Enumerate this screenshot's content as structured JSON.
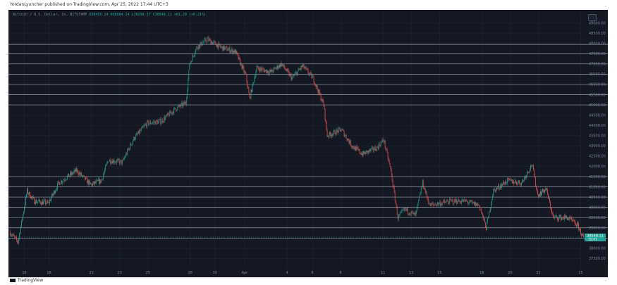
{
  "header": {
    "published_by": "YordanLyuncher published on TradingView.com, Apr 25, 2022 17:44 UTC+3"
  },
  "symbol_bar": {
    "name": "Bitcoin / U.S. Dollar, 1h, BITSTAMP",
    "open": "O38455.24",
    "high": "H38584.14",
    "low": "L38298.57",
    "close": "C38548.11",
    "change": "+81.29 (+0.21%)"
  },
  "footer": {
    "brand": "TradingView"
  },
  "price_tags": {
    "last_price": "38548.11",
    "countdown": "15:01"
  },
  "colors": {
    "background": "#141823",
    "up": "#26a69a",
    "down": "#ef5350",
    "grid": "#232736",
    "levels": "#9aa0ad",
    "axis_text": "#7d8597"
  },
  "chart_data": {
    "type": "candlestick",
    "title": "Bitcoin / U.S. Dollar, 1h, BITSTAMP",
    "ylim": [
      37000,
      49500
    ],
    "y_ticks": [
      37500,
      38000,
      38500,
      39000,
      39500,
      40000,
      40500,
      41000,
      41500,
      42000,
      42500,
      43000,
      43500,
      44000,
      44500,
      45000,
      45500,
      46000,
      46500,
      47000,
      47500,
      48000,
      48500,
      49000
    ],
    "x_ticks": [
      "16",
      "18",
      "21",
      "23",
      "25",
      "28",
      "30",
      "Apr",
      "4",
      "6",
      "8",
      "11",
      "13",
      "15",
      "18",
      "20",
      "22",
      "25"
    ],
    "x_tick_index": [
      20,
      55,
      115,
      155,
      195,
      255,
      290,
      332,
      392,
      428,
      468,
      528,
      568,
      608,
      668,
      708,
      748,
      808
    ],
    "horizontal_levels": [
      47950,
      47500,
      47000,
      46500,
      46000,
      45500,
      45000,
      41500,
      41000,
      40500,
      40000,
      39500,
      39000,
      38500
    ],
    "path_keypoints": [
      [
        0,
        38800
      ],
      [
        12,
        38300
      ],
      [
        25,
        40800
      ],
      [
        35,
        40300
      ],
      [
        55,
        40200
      ],
      [
        70,
        41200
      ],
      [
        95,
        41800
      ],
      [
        115,
        41100
      ],
      [
        130,
        41300
      ],
      [
        140,
        42300
      ],
      [
        160,
        42200
      ],
      [
        175,
        43300
      ],
      [
        195,
        44100
      ],
      [
        215,
        44200
      ],
      [
        235,
        44800
      ],
      [
        250,
        45100
      ],
      [
        255,
        47000
      ],
      [
        265,
        47800
      ],
      [
        280,
        48200
      ],
      [
        300,
        47800
      ],
      [
        320,
        47600
      ],
      [
        335,
        46400
      ],
      [
        340,
        45300
      ],
      [
        350,
        46800
      ],
      [
        370,
        46600
      ],
      [
        385,
        47000
      ],
      [
        400,
        46300
      ],
      [
        415,
        46900
      ],
      [
        430,
        46300
      ],
      [
        445,
        45000
      ],
      [
        450,
        43500
      ],
      [
        470,
        43800
      ],
      [
        485,
        43000
      ],
      [
        500,
        42600
      ],
      [
        520,
        42900
      ],
      [
        530,
        43300
      ],
      [
        540,
        41800
      ],
      [
        550,
        39500
      ],
      [
        560,
        39900
      ],
      [
        575,
        39600
      ],
      [
        585,
        41200
      ],
      [
        595,
        40100
      ],
      [
        610,
        40200
      ],
      [
        625,
        40300
      ],
      [
        645,
        40300
      ],
      [
        665,
        40100
      ],
      [
        675,
        39000
      ],
      [
        685,
        40800
      ],
      [
        705,
        41300
      ],
      [
        725,
        41200
      ],
      [
        740,
        42100
      ],
      [
        748,
        40600
      ],
      [
        760,
        40900
      ],
      [
        770,
        39500
      ],
      [
        790,
        39500
      ],
      [
        805,
        39100
      ],
      [
        812,
        38550
      ]
    ],
    "candle_count": 813,
    "last_close": 38548.11
  }
}
